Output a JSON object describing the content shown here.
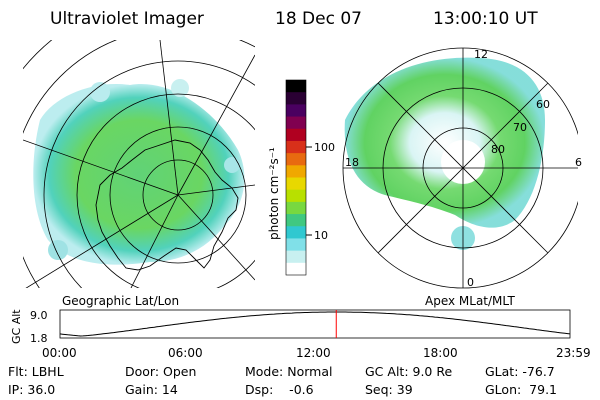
{
  "header": {
    "instrument": "Ultraviolet Imager",
    "date": "18 Dec 07",
    "time": "13:00:10 UT"
  },
  "left_map": {
    "label": "Geographic Lat/Lon"
  },
  "right_map": {
    "label": "Apex MLat/MLT",
    "mlt_labels": [
      "12",
      "18",
      "6",
      "0"
    ],
    "mlat_labels": [
      "60",
      "70",
      "80"
    ]
  },
  "colorbar": {
    "unit_label": "photon cm⁻²s⁻¹",
    "tick_labels": [
      "100",
      "10"
    ],
    "colors": [
      "#000000",
      "#2a0033",
      "#4a0060",
      "#800050",
      "#b00020",
      "#d8301a",
      "#e86a10",
      "#f0a800",
      "#e8d800",
      "#b8e000",
      "#78d840",
      "#40c880",
      "#30c8d0",
      "#80e0e8",
      "#c8f0f0",
      "#ffffff"
    ]
  },
  "altitude_plot": {
    "ylabel": "GC Alt",
    "y_ticks": [
      "9.0",
      "1.8"
    ],
    "x_ticks": [
      "00:00",
      "06:00",
      "12:00",
      "18:00",
      "23:59"
    ],
    "current_marker_hours": 13.0,
    "orbit_period_hours": 24.0
  },
  "footer": {
    "filter": "Flt: LBHL",
    "ip": "IP: 36.0",
    "door": "Door: Open",
    "gain": "Gain: 14",
    "mode": "Mode: Normal",
    "dsp": "Dsp:    -0.6",
    "gc_alt": "GC Alt: 9.0 Re",
    "seq": "Seq: 39",
    "glat": "GLat: -76.7",
    "glon": "GLon:  79.1"
  }
}
